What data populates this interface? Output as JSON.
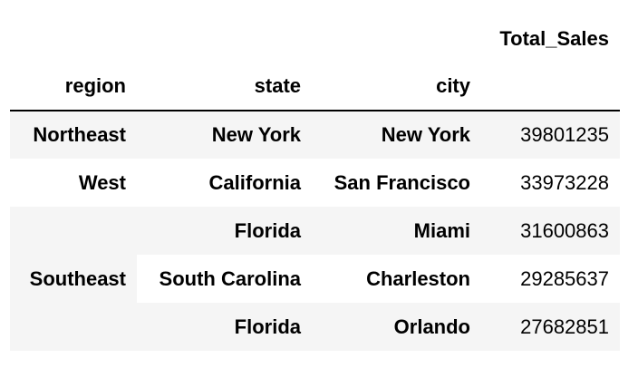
{
  "table": {
    "columns_header": [
      "Total_Sales"
    ],
    "index_names": [
      "region",
      "state",
      "city"
    ],
    "rows": [
      {
        "region": "Northeast",
        "state": "New York",
        "city": "New York",
        "total_sales": "39801235"
      },
      {
        "region": "West",
        "state": "California",
        "city": "San Francisco",
        "total_sales": "33973228"
      },
      {
        "region": "Southeast",
        "state": "Florida",
        "city": "Miami",
        "total_sales": "31600863"
      },
      {
        "region": "",
        "state": "South Carolina",
        "city": "Charleston",
        "total_sales": "29285637"
      },
      {
        "region": "",
        "state": "Florida",
        "city": "Orlando",
        "total_sales": "27682851"
      }
    ]
  },
  "colors": {
    "stripe": "#f5f5f5",
    "background": "#ffffff",
    "text": "#000000",
    "rule": "#000000"
  }
}
